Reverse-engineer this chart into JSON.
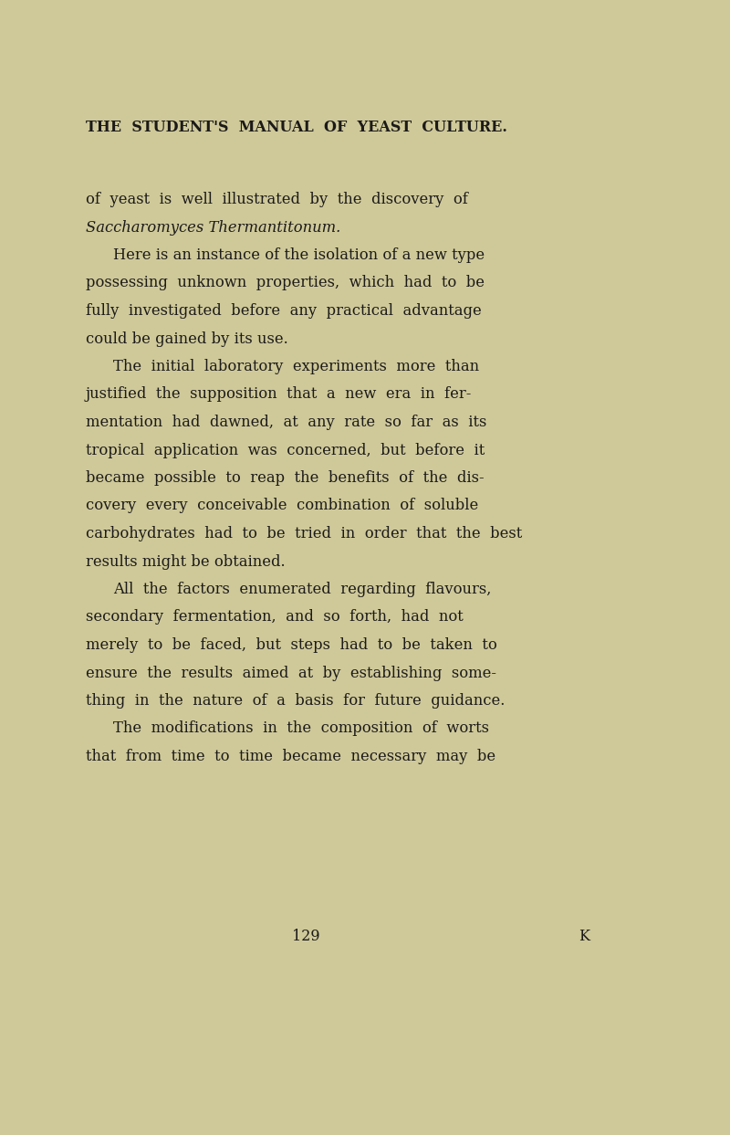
{
  "bg_color": "#cfc99a",
  "text_color": "#1c1a18",
  "page_width": 8.0,
  "page_height": 12.43,
  "dpi": 100,
  "header": "THE  STUDENT'S  MANUAL  OF  YEAST  CULTURE.",
  "header_fontsize": 11.5,
  "page_number": "129",
  "page_letter": "K",
  "body_fontsize": 11.8,
  "header_fontsize_sm": 11.5,
  "lines": [
    {
      "text": "of  yeast  is  well  illustrated  by  the  discovery  of",
      "indent": false,
      "style": "normal",
      "para_start": true
    },
    {
      "text": "Saccharomyces Thermantitonum.",
      "indent": false,
      "style": "italic",
      "para_start": false
    },
    {
      "text": "Here is an instance of the isolation of a new type",
      "indent": true,
      "style": "normal",
      "para_start": true
    },
    {
      "text": "possessing  unknown  properties,  which  had  to  be",
      "indent": false,
      "style": "normal",
      "para_start": false
    },
    {
      "text": "fully  investigated  before  any  practical  advantage",
      "indent": false,
      "style": "normal",
      "para_start": false
    },
    {
      "text": "could be gained by its use.",
      "indent": false,
      "style": "normal",
      "para_start": false
    },
    {
      "text": "The  initial  laboratory  experiments  more  than",
      "indent": true,
      "style": "normal",
      "para_start": true
    },
    {
      "text": "justified  the  supposition  that  a  new  era  in  fer-",
      "indent": false,
      "style": "normal",
      "para_start": false
    },
    {
      "text": "mentation  had  dawned,  at  any  rate  so  far  as  its",
      "indent": false,
      "style": "normal",
      "para_start": false
    },
    {
      "text": "tropical  application  was  concerned,  but  before  it",
      "indent": false,
      "style": "normal",
      "para_start": false
    },
    {
      "text": "became  possible  to  reap  the  benefits  of  the  dis-",
      "indent": false,
      "style": "normal",
      "para_start": false
    },
    {
      "text": "covery  every  conceivable  combination  of  soluble",
      "indent": false,
      "style": "normal",
      "para_start": false
    },
    {
      "text": "carbohydrates  had  to  be  tried  in  order  that  the  best",
      "indent": false,
      "style": "normal",
      "para_start": false
    },
    {
      "text": "results might be obtained.",
      "indent": false,
      "style": "normal",
      "para_start": false
    },
    {
      "text": "All  the  factors  enumerated  regarding  flavours,",
      "indent": true,
      "style": "normal",
      "para_start": true
    },
    {
      "text": "secondary  fermentation,  and  so  forth,  had  not",
      "indent": false,
      "style": "normal",
      "para_start": false
    },
    {
      "text": "merely  to  be  faced,  but  steps  had  to  be  taken  to",
      "indent": false,
      "style": "normal",
      "para_start": false
    },
    {
      "text": "ensure  the  results  aimed  at  by  establishing  some-",
      "indent": false,
      "style": "normal",
      "para_start": false
    },
    {
      "text": "thing  in  the  nature  of  a  basis  for  future  guidance.",
      "indent": false,
      "style": "normal",
      "para_start": false
    },
    {
      "text": "The  modifications  in  the  composition  of  worts",
      "indent": true,
      "style": "normal",
      "para_start": true
    },
    {
      "text": "that  from  time  to  time  became  necessary  may  be",
      "indent": false,
      "style": "normal",
      "para_start": false
    }
  ]
}
